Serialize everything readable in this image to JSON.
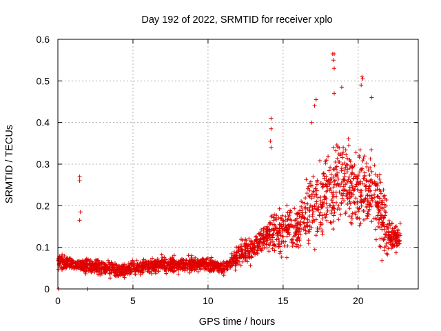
{
  "chart_data": {
    "type": "scatter",
    "title": "Day 192 of 2022, SRMTID for receiver xplo",
    "xlabel": "GPS time / hours",
    "ylabel": "SRMTID / TECUs",
    "xlim": [
      0,
      24
    ],
    "ylim": [
      0,
      0.6
    ],
    "x_ticks": [
      0,
      5,
      10,
      15,
      20
    ],
    "x_tick_labels": [
      "0",
      "5",
      "10",
      "15",
      "20"
    ],
    "y_ticks": [
      0,
      0.1,
      0.2,
      0.3,
      0.4,
      0.5,
      0.6
    ],
    "y_tick_labels": [
      "0",
      "0.1",
      "0.2",
      "0.3",
      "0.4",
      "0.5",
      "0.6"
    ],
    "grid": true,
    "marker": "plus",
    "color": "#e00000",
    "series": [
      {
        "name": "SRMTID",
        "trend": [
          [
            0.0,
            0.065
          ],
          [
            1.0,
            0.06
          ],
          [
            2.0,
            0.055
          ],
          [
            3.0,
            0.05
          ],
          [
            4.0,
            0.045
          ],
          [
            5.0,
            0.05
          ],
          [
            6.0,
            0.055
          ],
          [
            7.0,
            0.06
          ],
          [
            8.0,
            0.055
          ],
          [
            9.0,
            0.06
          ],
          [
            10.0,
            0.06
          ],
          [
            11.0,
            0.05
          ],
          [
            12.0,
            0.08
          ],
          [
            13.0,
            0.1
          ],
          [
            14.0,
            0.13
          ],
          [
            15.0,
            0.14
          ],
          [
            16.0,
            0.15
          ],
          [
            17.0,
            0.2
          ],
          [
            18.0,
            0.24
          ],
          [
            19.0,
            0.25
          ],
          [
            20.0,
            0.24
          ],
          [
            21.0,
            0.23
          ],
          [
            21.5,
            0.19
          ],
          [
            22.0,
            0.13
          ],
          [
            22.8,
            0.12
          ]
        ],
        "points": [
          [
            1.45,
            0.27
          ],
          [
            1.45,
            0.26
          ],
          [
            1.5,
            0.185
          ],
          [
            1.45,
            0.165
          ],
          [
            14.2,
            0.41
          ],
          [
            14.2,
            0.385
          ],
          [
            14.15,
            0.355
          ],
          [
            14.2,
            0.34
          ],
          [
            18.3,
            0.565
          ],
          [
            18.4,
            0.565
          ],
          [
            18.35,
            0.55
          ],
          [
            18.4,
            0.53
          ],
          [
            20.25,
            0.51
          ],
          [
            20.3,
            0.505
          ],
          [
            20.2,
            0.49
          ],
          [
            18.9,
            0.485
          ],
          [
            18.4,
            0.47
          ],
          [
            20.9,
            0.46
          ],
          [
            17.2,
            0.455
          ],
          [
            17.1,
            0.44
          ],
          [
            16.9,
            0.4
          ],
          [
            0.05,
            0.0
          ],
          [
            1.95,
            0.0
          ]
        ]
      }
    ]
  }
}
